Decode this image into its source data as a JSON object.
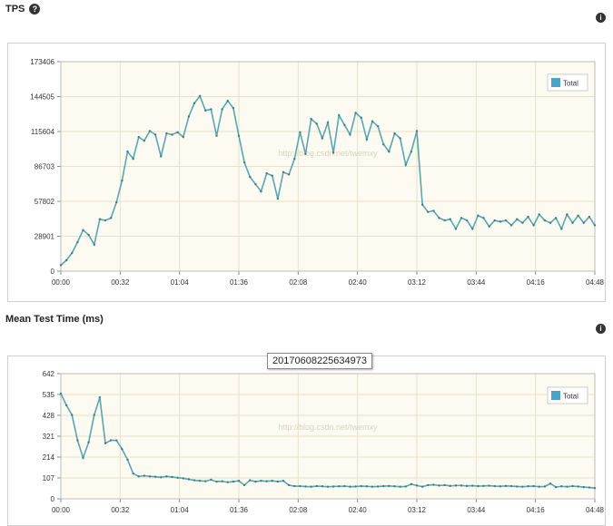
{
  "tps": {
    "title": "TPS",
    "help_icon": "help-icon",
    "info_icon": "info-icon"
  },
  "mean": {
    "title": "Mean Test Time (ms)",
    "info_icon": "info-icon"
  },
  "tooltip": {
    "text": "20170608225634973"
  },
  "watermark": "http://blog.csdn.net/twemxy",
  "colors": {
    "line": "#5aa6b0",
    "legend": "#4aa3c9",
    "plot_bg": "#fdfbf1",
    "grid": "#e5e2cc"
  },
  "chart_data": [
    {
      "type": "line",
      "title": "TPS",
      "legend": "Total",
      "legend_position": "top-right",
      "grid": true,
      "x_ticks": [
        "00:00",
        "00:32",
        "01:04",
        "01:36",
        "02:08",
        "02:40",
        "03:12",
        "03:44",
        "04:16",
        "04:48"
      ],
      "y_ticks": [
        "0",
        "28901",
        "57802",
        "86703",
        "115604",
        "144505",
        "173406"
      ],
      "xlim": [
        0,
        288
      ],
      "ylim": [
        0,
        173406
      ],
      "series": [
        {
          "name": "Total",
          "x": [
            0,
            3,
            6,
            9,
            12,
            15,
            18,
            21,
            24,
            27,
            30,
            33,
            36,
            39,
            42,
            45,
            48,
            51,
            54,
            57,
            60,
            63,
            66,
            69,
            72,
            75,
            78,
            81,
            84,
            87,
            90,
            93,
            96,
            99,
            102,
            105,
            108,
            111,
            114,
            117,
            120,
            123,
            126,
            129,
            132,
            135,
            138,
            141,
            144,
            147,
            150,
            153,
            156,
            159,
            162,
            165,
            168,
            171,
            174,
            177,
            180,
            183,
            186,
            189,
            192,
            195,
            198,
            201,
            204,
            207,
            210,
            213,
            216,
            219,
            222,
            225,
            228,
            231,
            234,
            237,
            240,
            243,
            246,
            249,
            252,
            255,
            258,
            261,
            264,
            267,
            270,
            273,
            276,
            279,
            282,
            285,
            288
          ],
          "y": [
            5000,
            9000,
            15000,
            24000,
            34000,
            30000,
            22000,
            43000,
            42000,
            44000,
            57000,
            75000,
            99000,
            93000,
            111000,
            108000,
            116000,
            113000,
            95000,
            114000,
            113000,
            115000,
            111000,
            128000,
            139000,
            145000,
            133000,
            134000,
            112000,
            134000,
            141000,
            135000,
            112000,
            90000,
            78000,
            72000,
            66000,
            81000,
            79000,
            60000,
            82000,
            80000,
            93000,
            115000,
            97000,
            126000,
            122000,
            110000,
            123000,
            98000,
            129000,
            121000,
            113000,
            131000,
            127000,
            109000,
            124000,
            120000,
            105000,
            99000,
            114000,
            110000,
            88000,
            99000,
            116000,
            55000,
            49000,
            50000,
            44000,
            42000,
            43000,
            35000,
            44000,
            42000,
            35000,
            46000,
            44000,
            37000,
            42000,
            41000,
            42000,
            38000,
            43000,
            40000,
            45000,
            38000,
            47000,
            42000,
            40000,
            44000,
            35000,
            47000,
            40000,
            46000,
            40000,
            45000,
            38000
          ]
        }
      ]
    },
    {
      "type": "line",
      "title": "Mean Test Time (ms)",
      "legend": "Total",
      "legend_position": "top-right",
      "grid": true,
      "x_ticks": [
        "00:00",
        "00:32",
        "01:04",
        "01:36",
        "02:08",
        "02:40",
        "03:12",
        "03:44",
        "04:16",
        "04:48"
      ],
      "y_ticks": [
        "0",
        "107",
        "214",
        "321",
        "428",
        "535",
        "642"
      ],
      "xlim": [
        0,
        288
      ],
      "ylim": [
        0,
        642
      ],
      "series": [
        {
          "name": "Total",
          "x": [
            0,
            3,
            6,
            9,
            12,
            15,
            18,
            21,
            24,
            27,
            30,
            33,
            36,
            39,
            42,
            45,
            48,
            51,
            54,
            57,
            60,
            63,
            66,
            69,
            72,
            75,
            78,
            81,
            84,
            87,
            90,
            93,
            96,
            99,
            102,
            105,
            108,
            111,
            114,
            117,
            120,
            123,
            126,
            129,
            132,
            135,
            138,
            141,
            144,
            147,
            150,
            153,
            156,
            159,
            162,
            165,
            168,
            171,
            174,
            177,
            180,
            183,
            186,
            189,
            192,
            195,
            198,
            201,
            204,
            207,
            210,
            213,
            216,
            219,
            222,
            225,
            228,
            231,
            234,
            237,
            240,
            243,
            246,
            249,
            252,
            255,
            258,
            261,
            264,
            267,
            270,
            273,
            276,
            279,
            282,
            285,
            288
          ],
          "y": [
            540,
            480,
            430,
            300,
            210,
            290,
            430,
            520,
            285,
            300,
            300,
            255,
            200,
            130,
            115,
            118,
            115,
            113,
            110,
            115,
            112,
            108,
            105,
            100,
            95,
            92,
            90,
            98,
            88,
            90,
            85,
            88,
            92,
            70,
            95,
            88,
            92,
            90,
            92,
            88,
            92,
            70,
            65,
            65,
            63,
            62,
            65,
            64,
            62,
            63,
            64,
            65,
            62,
            63,
            65,
            64,
            62,
            63,
            65,
            66,
            64,
            62,
            63,
            75,
            68,
            62,
            70,
            72,
            68,
            70,
            66,
            68,
            68,
            66,
            67,
            65,
            66,
            67,
            65,
            64,
            66,
            65,
            63,
            62,
            64,
            65,
            62,
            63,
            78,
            60,
            64,
            62,
            65,
            63,
            60,
            58,
            55
          ]
        }
      ]
    }
  ]
}
